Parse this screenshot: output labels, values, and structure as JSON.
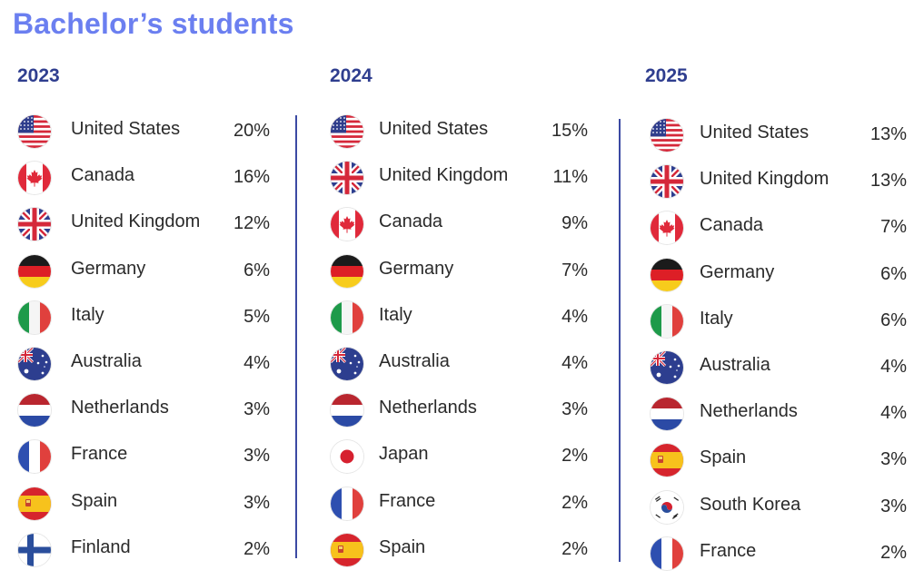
{
  "title": "Bachelor’s students",
  "columns": [
    {
      "year": "2023",
      "rows": [
        {
          "country": "United States",
          "pct": "20%",
          "flag": "us-flag-icon"
        },
        {
          "country": "Canada",
          "pct": "16%",
          "flag": "ca-flag-icon"
        },
        {
          "country": "United Kingdom",
          "pct": "12%",
          "flag": "uk-flag-icon"
        },
        {
          "country": "Germany",
          "pct": "6%",
          "flag": "de-flag-icon"
        },
        {
          "country": "Italy",
          "pct": "5%",
          "flag": "it-flag-icon"
        },
        {
          "country": "Australia",
          "pct": "4%",
          "flag": "au-flag-icon"
        },
        {
          "country": "Netherlands",
          "pct": "3%",
          "flag": "nl-flag-icon"
        },
        {
          "country": "France",
          "pct": "3%",
          "flag": "fr-flag-icon"
        },
        {
          "country": "Spain",
          "pct": "3%",
          "flag": "es-flag-icon"
        },
        {
          "country": "Finland",
          "pct": "2%",
          "flag": "fi-flag-icon"
        }
      ]
    },
    {
      "year": "2024",
      "rows": [
        {
          "country": "United States",
          "pct": "15%",
          "flag": "us-flag-icon"
        },
        {
          "country": "United Kingdom",
          "pct": "11%",
          "flag": "uk-flag-icon"
        },
        {
          "country": "Canada",
          "pct": "9%",
          "flag": "ca-flag-icon"
        },
        {
          "country": "Germany",
          "pct": "7%",
          "flag": "de-flag-icon"
        },
        {
          "country": "Italy",
          "pct": "4%",
          "flag": "it-flag-icon"
        },
        {
          "country": "Australia",
          "pct": "4%",
          "flag": "au-flag-icon"
        },
        {
          "country": "Netherlands",
          "pct": "3%",
          "flag": "nl-flag-icon"
        },
        {
          "country": "Japan",
          "pct": "2%",
          "flag": "jp-flag-icon"
        },
        {
          "country": "France",
          "pct": "2%",
          "flag": "fr-flag-icon"
        },
        {
          "country": "Spain",
          "pct": "2%",
          "flag": "es-flag-icon"
        }
      ]
    },
    {
      "year": "2025",
      "rows": [
        {
          "country": "United States",
          "pct": "13%",
          "flag": "us-flag-icon"
        },
        {
          "country": "United Kingdom",
          "pct": "13%",
          "flag": "uk-flag-icon"
        },
        {
          "country": "Canada",
          "pct": "7%",
          "flag": "ca-flag-icon"
        },
        {
          "country": "Germany",
          "pct": "6%",
          "flag": "de-flag-icon"
        },
        {
          "country": "Italy",
          "pct": "6%",
          "flag": "it-flag-icon"
        },
        {
          "country": "Australia",
          "pct": "4%",
          "flag": "au-flag-icon"
        },
        {
          "country": "Netherlands",
          "pct": "4%",
          "flag": "nl-flag-icon"
        },
        {
          "country": "Spain",
          "pct": "3%",
          "flag": "es-flag-icon"
        },
        {
          "country": "South Korea",
          "pct": "3%",
          "flag": "kr-flag-icon"
        },
        {
          "country": "France",
          "pct": "2%",
          "flag": "fr-flag-icon"
        }
      ]
    }
  ],
  "colors": {
    "title": "#6b7ff0",
    "year": "#2f3e8f",
    "divider": "#3b4aa3"
  }
}
